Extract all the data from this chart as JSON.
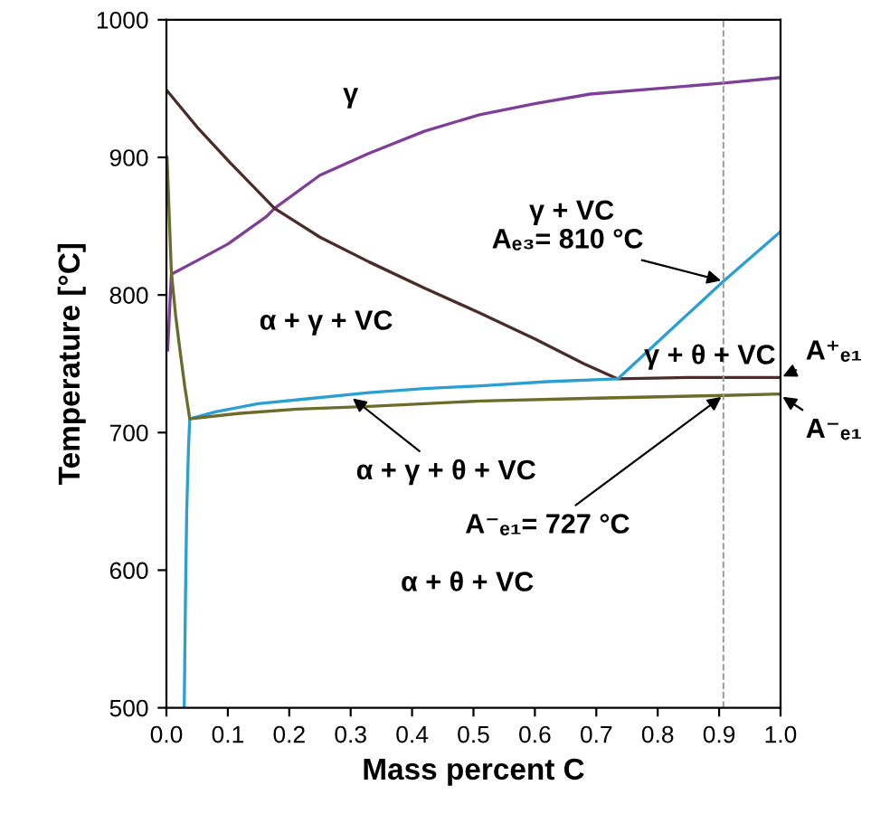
{
  "chart_data": {
    "type": "line",
    "xlabel": "Mass percent C",
    "ylabel": "Temperature [°C]",
    "xlim": [
      0.0,
      1.0
    ],
    "ylim": [
      500,
      1000
    ],
    "xticks": [
      {
        "value": 0,
        "label": "0.0"
      },
      0.1,
      0.2,
      0.3,
      0.4,
      0.5,
      0.6,
      0.7,
      0.8,
      0.9,
      {
        "value": 1,
        "label": "1.0"
      }
    ],
    "yticks": [
      500,
      600,
      700,
      800,
      900,
      1000
    ],
    "grid": false,
    "marker": "none",
    "line_style": "solid",
    "series": [
      {
        "color": "#7f3f98",
        "x": [
          0.002,
          0.008,
          0.05,
          0.1,
          0.163,
          0.176,
          0.25,
          0.33,
          0.42,
          0.51,
          0.6,
          0.69,
          0.8,
          0.907,
          1.0
        ],
        "values": [
          760,
          815,
          825,
          837,
          857,
          863,
          887,
          903,
          919,
          931,
          939,
          946,
          950,
          954,
          958
        ]
      },
      {
        "color": "#4a2c2a",
        "x": [
          0.0,
          0.05,
          0.104,
          0.176,
          0.25,
          0.33,
          0.42,
          0.51,
          0.6,
          0.68,
          0.735,
          0.85,
          1.0
        ],
        "values": [
          949,
          922,
          896,
          863,
          842,
          824,
          805,
          787,
          768,
          750,
          739,
          740,
          740
        ]
      },
      {
        "color": "#2a9fd0",
        "x": [
          0.029,
          0.031,
          0.033,
          0.036,
          0.038,
          0.08,
          0.149,
          0.24,
          0.33,
          0.42,
          0.512,
          0.62,
          0.735,
          0.907,
          1.0
        ],
        "values": [
          501,
          580,
          642,
          690,
          710,
          715,
          721,
          725,
          729,
          732,
          734,
          737,
          739,
          810,
          846
        ]
      },
      {
        "color": "#6b6b2a",
        "x": [
          0.001,
          0.008,
          0.015,
          0.022,
          0.03,
          0.038,
          0.12,
          0.213,
          0.33,
          0.512,
          0.7,
          0.907,
          1.0
        ],
        "values": [
          900,
          817,
          785,
          760,
          733,
          710,
          714,
          717,
          719,
          723,
          725,
          727,
          728
        ]
      }
    ],
    "ref_lines": [
      {
        "axis": "x",
        "value": 0.907,
        "color": "#999999",
        "line_style": "dashed"
      }
    ],
    "annotations": [
      "γ",
      "γ + VC",
      "α + γ + VC",
      "γ + θ + VC",
      "α + θ + VC",
      {
        "text": "α + γ + θ + VC",
        "x": 0.3,
        "y": 726
      },
      {
        "text": "Aₑ₃= 810 °C",
        "x": 0.907,
        "y": 810
      },
      {
        "text": "A⁻ₑ₁= 727 °C",
        "x": 0.907,
        "y": 727
      },
      {
        "text": "A⁺ₑ₁",
        "x": 1.0,
        "y": 740
      },
      {
        "text": "A⁻ₑ₁",
        "x": 1.0,
        "y": 727
      }
    ]
  }
}
